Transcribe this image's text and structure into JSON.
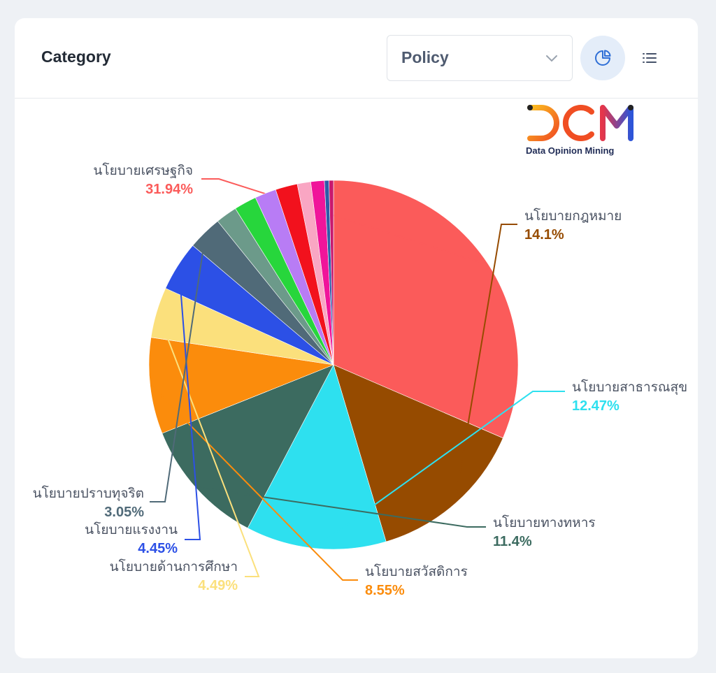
{
  "header": {
    "title": "Category",
    "select_value": "Policy"
  },
  "logo": {
    "text": "DOM",
    "subtitle": "Data Opinion Mining"
  },
  "colors": {
    "accent": "#2f6fd6",
    "card_bg": "#ffffff",
    "page_bg": "#eef1f5"
  },
  "icons": {
    "select": "chevron-down-icon",
    "pie_view": "pie-chart-icon",
    "list_view": "list-icon"
  },
  "chart_data": {
    "type": "pie",
    "start_angle_deg": 360,
    "direction": "clockwise",
    "slices": [
      {
        "label": "นโยบายเศรษฐกิจ",
        "value": 31.94,
        "display": "31.94%",
        "color": "#fb5b5a",
        "labeled": true
      },
      {
        "label": "นโยบายกฎหมาย",
        "value": 14.1,
        "display": "14.1%",
        "color": "#964b00",
        "labeled": true
      },
      {
        "label": "นโยบายสาธารณสุข",
        "value": 12.47,
        "display": "12.47%",
        "color": "#2ee0ef",
        "labeled": true
      },
      {
        "label": "นโยบายทางทหาร",
        "value": 11.4,
        "display": "11.4%",
        "color": "#3c6b60",
        "labeled": true
      },
      {
        "label": "นโยบายสวัสดิการ",
        "value": 8.55,
        "display": "8.55%",
        "color": "#fb8c0c",
        "labeled": true
      },
      {
        "label": "นโยบายด้านการศึกษา",
        "value": 4.49,
        "display": "4.49%",
        "color": "#fbe07c",
        "labeled": true
      },
      {
        "label": "นโยบายแรงงาน",
        "value": 4.45,
        "display": "4.45%",
        "color": "#2c50e6",
        "labeled": true
      },
      {
        "label": "นโยบายปราบทุจริต",
        "value": 3.05,
        "display": "3.05%",
        "color": "#506a78",
        "labeled": true
      },
      {
        "label": "",
        "value": 1.9,
        "display": "",
        "color": "#6c9a8a",
        "labeled": false
      },
      {
        "label": "",
        "value": 2.0,
        "display": "",
        "color": "#27d63c",
        "labeled": false
      },
      {
        "label": "",
        "value": 1.9,
        "display": "",
        "color": "#b87cf5",
        "labeled": false
      },
      {
        "label": "",
        "value": 1.95,
        "display": "",
        "color": "#f2111d",
        "labeled": false
      },
      {
        "label": "",
        "value": 1.2,
        "display": "",
        "color": "#f9a6c3",
        "labeled": false
      },
      {
        "label": "",
        "value": 1.2,
        "display": "",
        "color": "#f0149a",
        "labeled": false
      },
      {
        "label": "",
        "value": 0.4,
        "display": "",
        "color": "#2d5ca8",
        "labeled": false
      },
      {
        "label": "",
        "value": 0.4,
        "display": "",
        "color": "#c8186e",
        "labeled": false
      }
    ]
  }
}
